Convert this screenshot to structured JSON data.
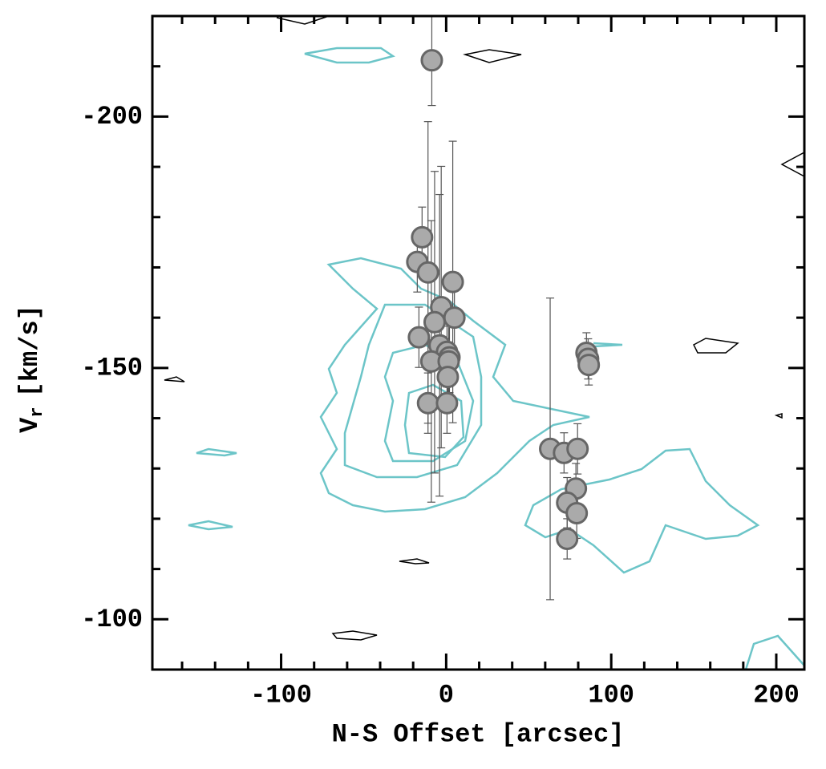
{
  "chart_data": {
    "type": "scatter",
    "x_label": "N-S Offset [arcsec]",
    "y_label": {
      "main": "V",
      "sub": "r",
      "unit": "[km/s]"
    },
    "xlim": [
      -178,
      217
    ],
    "ylim": [
      -90,
      -220
    ],
    "xticks": [
      -100,
      0,
      100,
      200
    ],
    "yticks": [
      -200,
      -150,
      -100
    ],
    "xminorticks": [
      -160,
      -140,
      -120,
      -80,
      -60,
      -40,
      -20,
      20,
      40,
      60,
      80,
      120,
      140,
      160,
      180
    ],
    "yminorticks": [
      -210,
      -190,
      -180,
      -170,
      -160,
      -140,
      -130,
      -120,
      -110
    ],
    "color": "#aaaaaa",
    "edge_color": "#666666",
    "errorbar_color": "#555555",
    "x": [
      -8.7,
      -14.6,
      -17.5,
      -11,
      4,
      -3,
      5,
      -7,
      -16.5,
      -4,
      0.5,
      2,
      -9,
      1.5,
      1,
      -11,
      0.5,
      63,
      71.4,
      79.6,
      78.6,
      73.3,
      79.1,
      73.3,
      85,
      86,
      86.4
    ],
    "values": [
      -211.2,
      -176,
      -171.1,
      -169,
      -167.1,
      -162.1,
      -160,
      -159.1,
      -156.1,
      -154.5,
      -153.2,
      -152.1,
      -151.3,
      -151.3,
      -148.2,
      -143,
      -143,
      -133.9,
      -133.1,
      -133.9,
      -126,
      -123.2,
      -121.1,
      -116,
      -153,
      -151.8,
      -150.6
    ],
    "errors": [
      9,
      6,
      6,
      30,
      28,
      28,
      9,
      30,
      6,
      30,
      7,
      7,
      28,
      7,
      7,
      6,
      6,
      30,
      4,
      5,
      5,
      5,
      5,
      4,
      4,
      4,
      4
    ]
  }
}
